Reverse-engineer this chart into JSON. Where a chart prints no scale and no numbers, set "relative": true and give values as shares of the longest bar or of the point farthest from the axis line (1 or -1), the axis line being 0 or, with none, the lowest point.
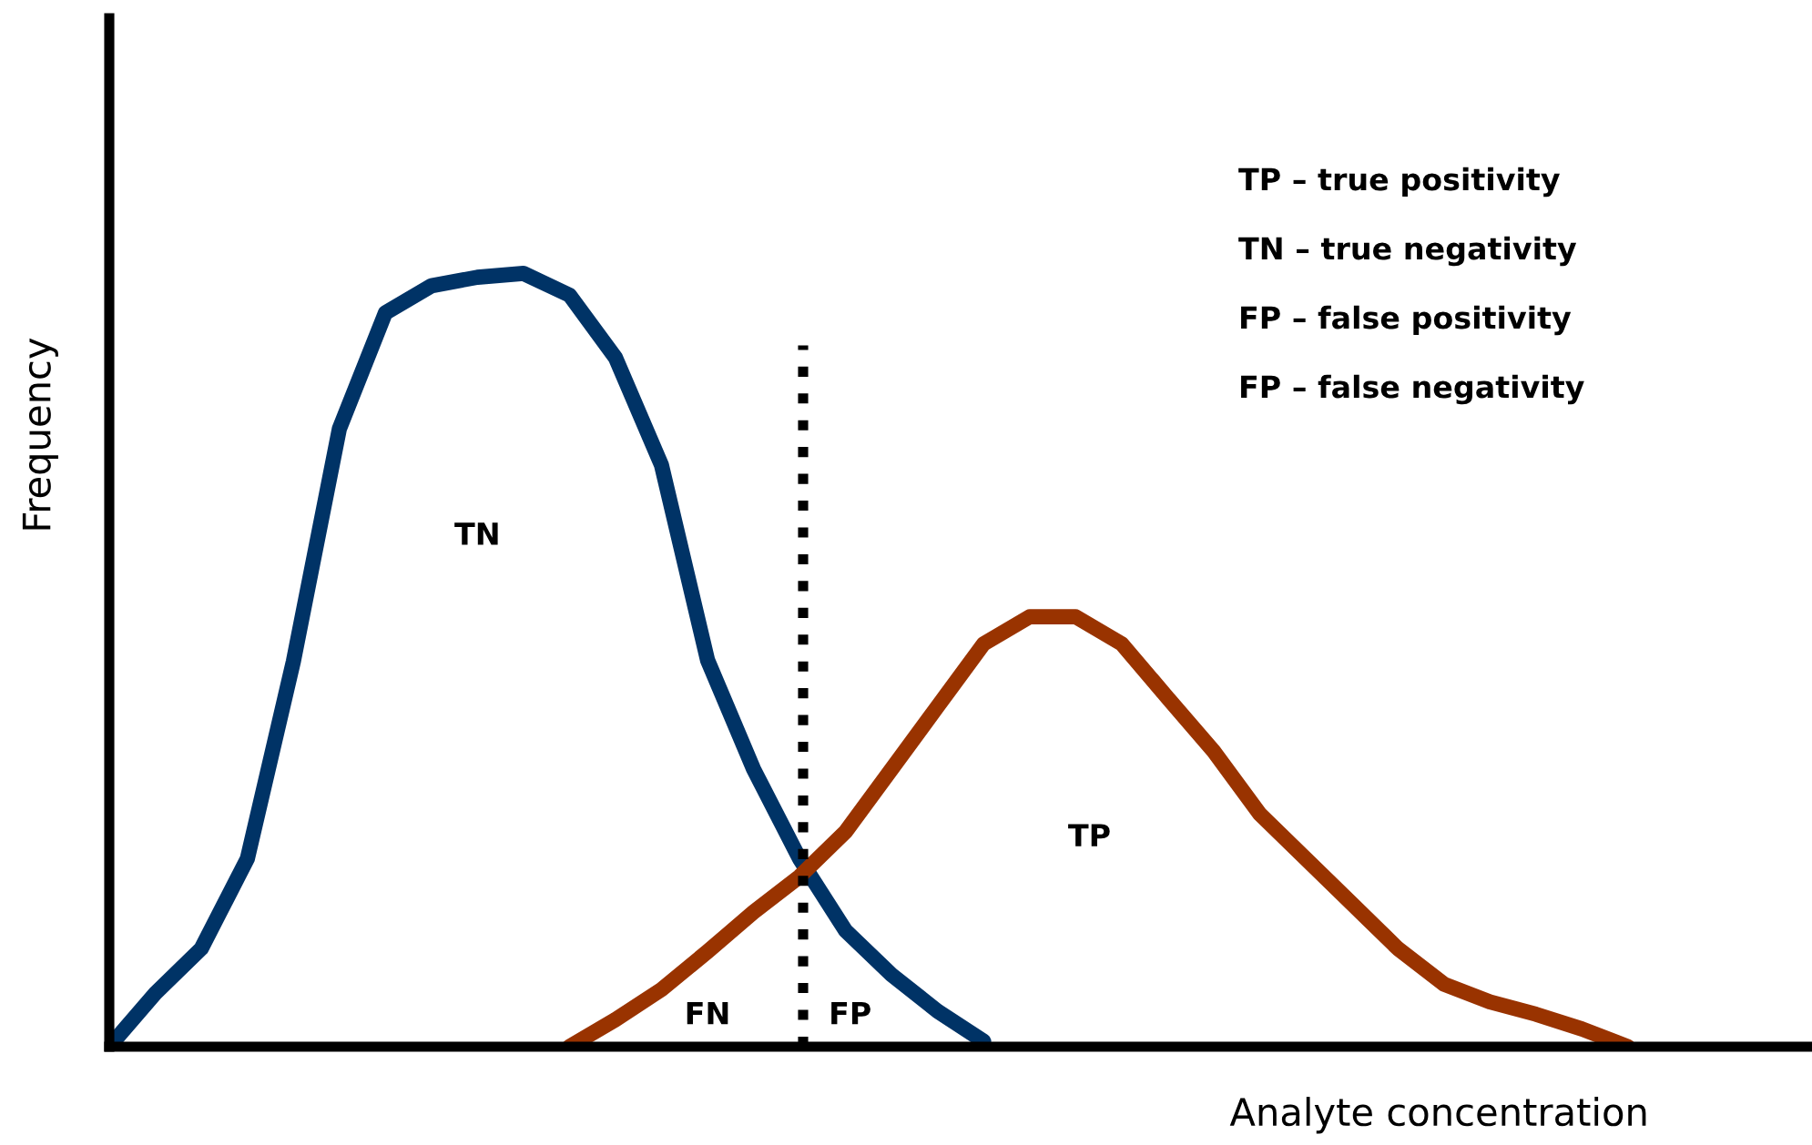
{
  "chart_data": {
    "type": "line",
    "relative": true,
    "xlabel": "Analyte concentration",
    "ylabel": "Frequency",
    "categories": [
      null,
      null,
      null,
      null,
      null,
      null,
      null,
      null,
      null,
      null,
      null,
      null,
      null,
      null,
      null,
      null,
      null,
      null,
      null,
      null,
      null,
      null,
      null,
      null,
      null,
      null,
      null,
      null,
      null,
      null,
      null,
      null,
      null,
      null,
      null,
      null,
      null,
      null
    ],
    "series": [
      {
        "color": "#003366",
        "values": [
          0,
          0.069,
          0.127,
          0.243,
          0.498,
          0.799,
          0.949,
          0.984,
          0.995,
          1,
          0.972,
          0.891,
          0.752,
          0.5,
          0.359,
          0.243,
          0.15,
          0.093,
          0.046,
          0.007,
          null,
          null,
          null,
          null,
          null,
          null,
          null,
          null,
          null,
          null,
          null,
          null,
          null,
          null,
          null,
          null,
          null,
          null
        ]
      },
      {
        "color": "#993300",
        "values": [
          null,
          null,
          null,
          null,
          null,
          null,
          null,
          null,
          null,
          null,
          0,
          0.035,
          0.074,
          0.123,
          0.174,
          0.22,
          0.278,
          0.359,
          0.44,
          0.521,
          0.556,
          0.556,
          0.521,
          0.451,
          0.382,
          0.301,
          0.243,
          0.185,
          0.127,
          0.081,
          0.058,
          0.042,
          0.023,
          0,
          null,
          null,
          null,
          null
        ]
      }
    ],
    "annotations": [
      "TN",
      "TP",
      "FN",
      "FP",
      "TP – true positivity",
      "TN – true negativity",
      "FP – false positivity",
      "FP – false negativity"
    ]
  }
}
